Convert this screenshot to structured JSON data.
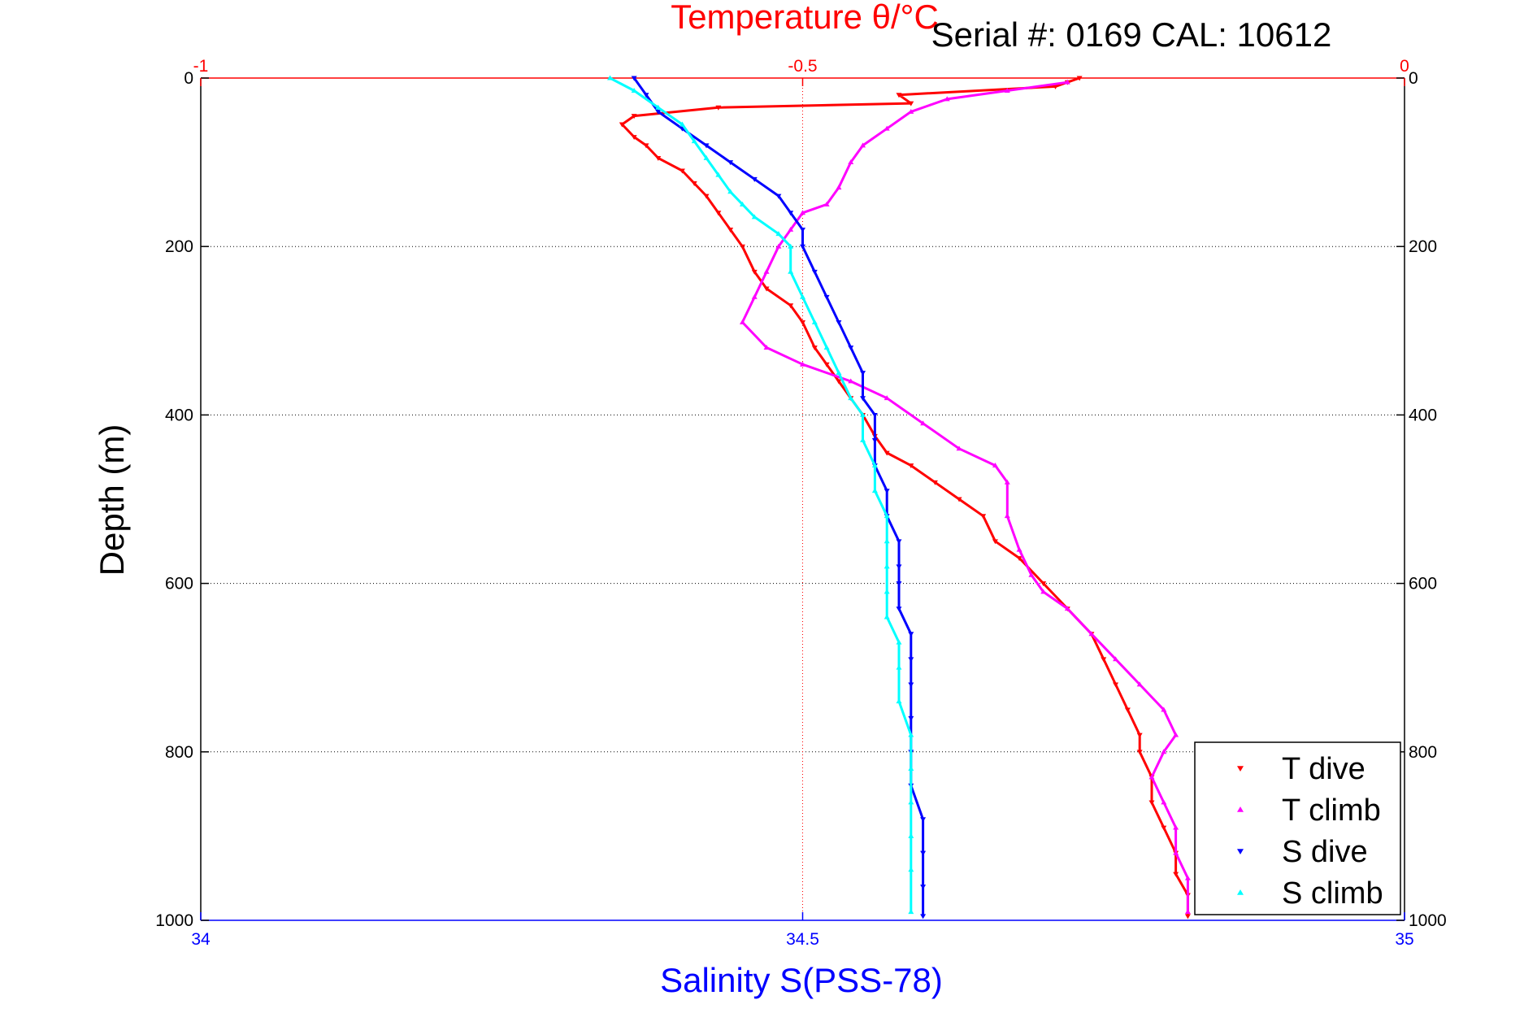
{
  "chart_data": {
    "type": "scatter",
    "title": "Temperature θ/°C",
    "annotation": "Serial #: 0169 CAL: 10612",
    "ylabel": "Depth (m)",
    "xlabel": "Salinity S(PSS-78)",
    "top_axis_label": "Temperature θ/°C",
    "ylim": [
      0,
      1000
    ],
    "y_reversed": true,
    "y_ticks": [
      0,
      200,
      400,
      600,
      800,
      1000
    ],
    "y_tick_labels": [
      "0",
      "200",
      "400",
      "600",
      "800",
      "1000"
    ],
    "salinity_xlim": [
      34,
      35
    ],
    "salinity_ticks": [
      34,
      34.5,
      35
    ],
    "salinity_tick_labels": [
      "34",
      "34.5",
      "35"
    ],
    "temperature_xlim": [
      -1,
      0
    ],
    "temperature_ticks": [
      -1,
      -0.5,
      0
    ],
    "temperature_tick_labels": [
      "-1",
      "-0.5",
      "0"
    ],
    "grid": "dotted",
    "legend_placement": "bottom-right",
    "series": [
      {
        "name": "T dive",
        "axis": "temperature",
        "color": "#ff0000",
        "marker": "triangle-down",
        "points": [
          [
            -0.27,
            0
          ],
          [
            -0.28,
            5
          ],
          [
            -0.29,
            10
          ],
          [
            -0.42,
            20
          ],
          [
            -0.41,
            30
          ],
          [
            -0.57,
            35
          ],
          [
            -0.64,
            45
          ],
          [
            -0.65,
            55
          ],
          [
            -0.64,
            70
          ],
          [
            -0.63,
            80
          ],
          [
            -0.62,
            95
          ],
          [
            -0.6,
            110
          ],
          [
            -0.59,
            125
          ],
          [
            -0.58,
            140
          ],
          [
            -0.57,
            160
          ],
          [
            -0.56,
            180
          ],
          [
            -0.55,
            200
          ],
          [
            -0.54,
            230
          ],
          [
            -0.53,
            250
          ],
          [
            -0.51,
            270
          ],
          [
            -0.5,
            290
          ],
          [
            -0.49,
            320
          ],
          [
            -0.48,
            340
          ],
          [
            -0.47,
            360
          ],
          [
            -0.46,
            380
          ],
          [
            -0.45,
            400
          ],
          [
            -0.44,
            425
          ],
          [
            -0.43,
            445
          ],
          [
            -0.41,
            460
          ],
          [
            -0.39,
            480
          ],
          [
            -0.37,
            500
          ],
          [
            -0.35,
            520
          ],
          [
            -0.34,
            550
          ],
          [
            -0.32,
            570
          ],
          [
            -0.3,
            600
          ],
          [
            -0.28,
            630
          ],
          [
            -0.26,
            660
          ],
          [
            -0.25,
            690
          ],
          [
            -0.24,
            720
          ],
          [
            -0.23,
            750
          ],
          [
            -0.22,
            780
          ],
          [
            -0.22,
            800
          ],
          [
            -0.21,
            830
          ],
          [
            -0.21,
            860
          ],
          [
            -0.2,
            890
          ],
          [
            -0.19,
            920
          ],
          [
            -0.19,
            945
          ],
          [
            -0.18,
            970
          ],
          [
            -0.18,
            995
          ]
        ]
      },
      {
        "name": "T climb",
        "axis": "temperature",
        "color": "#ff00ff",
        "marker": "triangle-up",
        "points": [
          [
            -0.28,
            5
          ],
          [
            -0.33,
            15
          ],
          [
            -0.38,
            25
          ],
          [
            -0.41,
            40
          ],
          [
            -0.43,
            60
          ],
          [
            -0.45,
            80
          ],
          [
            -0.46,
            100
          ],
          [
            -0.47,
            130
          ],
          [
            -0.48,
            150
          ],
          [
            -0.5,
            160
          ],
          [
            -0.51,
            180
          ],
          [
            -0.52,
            200
          ],
          [
            -0.53,
            230
          ],
          [
            -0.54,
            260
          ],
          [
            -0.55,
            290
          ],
          [
            -0.53,
            320
          ],
          [
            -0.5,
            340
          ],
          [
            -0.46,
            360
          ],
          [
            -0.43,
            380
          ],
          [
            -0.4,
            410
          ],
          [
            -0.37,
            440
          ],
          [
            -0.34,
            460
          ],
          [
            -0.33,
            480
          ],
          [
            -0.33,
            520
          ],
          [
            -0.32,
            560
          ],
          [
            -0.31,
            590
          ],
          [
            -0.3,
            610
          ],
          [
            -0.28,
            630
          ],
          [
            -0.26,
            660
          ],
          [
            -0.24,
            690
          ],
          [
            -0.22,
            720
          ],
          [
            -0.2,
            750
          ],
          [
            -0.19,
            780
          ],
          [
            -0.2,
            800
          ],
          [
            -0.21,
            830
          ],
          [
            -0.2,
            860
          ],
          [
            -0.19,
            890
          ],
          [
            -0.19,
            920
          ],
          [
            -0.18,
            950
          ],
          [
            -0.18,
            990
          ]
        ]
      },
      {
        "name": "S dive",
        "axis": "salinity",
        "color": "#0000ff",
        "marker": "triangle-down",
        "points": [
          [
            34.36,
            0
          ],
          [
            34.37,
            20
          ],
          [
            34.38,
            40
          ],
          [
            34.4,
            60
          ],
          [
            34.42,
            80
          ],
          [
            34.44,
            100
          ],
          [
            34.46,
            120
          ],
          [
            34.48,
            140
          ],
          [
            34.49,
            160
          ],
          [
            34.5,
            180
          ],
          [
            34.5,
            200
          ],
          [
            34.51,
            230
          ],
          [
            34.52,
            260
          ],
          [
            34.53,
            290
          ],
          [
            34.54,
            320
          ],
          [
            34.55,
            350
          ],
          [
            34.55,
            380
          ],
          [
            34.56,
            400
          ],
          [
            34.56,
            430
          ],
          [
            34.56,
            460
          ],
          [
            34.57,
            490
          ],
          [
            34.57,
            520
          ],
          [
            34.58,
            550
          ],
          [
            34.58,
            580
          ],
          [
            34.58,
            600
          ],
          [
            34.58,
            630
          ],
          [
            34.59,
            660
          ],
          [
            34.59,
            690
          ],
          [
            34.59,
            720
          ],
          [
            34.59,
            760
          ],
          [
            34.59,
            800
          ],
          [
            34.59,
            840
          ],
          [
            34.6,
            880
          ],
          [
            34.6,
            920
          ],
          [
            34.6,
            960
          ],
          [
            34.6,
            995
          ]
        ]
      },
      {
        "name": "S climb",
        "axis": "salinity",
        "color": "#00ffff",
        "marker": "triangle-up",
        "points": [
          [
            34.34,
            0
          ],
          [
            34.36,
            15
          ],
          [
            34.38,
            35
          ],
          [
            34.4,
            55
          ],
          [
            34.41,
            75
          ],
          [
            34.42,
            95
          ],
          [
            34.43,
            115
          ],
          [
            34.44,
            135
          ],
          [
            34.45,
            150
          ],
          [
            34.46,
            165
          ],
          [
            34.48,
            185
          ],
          [
            34.49,
            200
          ],
          [
            34.49,
            230
          ],
          [
            34.5,
            260
          ],
          [
            34.51,
            290
          ],
          [
            34.52,
            320
          ],
          [
            34.53,
            350
          ],
          [
            34.54,
            380
          ],
          [
            34.55,
            400
          ],
          [
            34.55,
            430
          ],
          [
            34.56,
            460
          ],
          [
            34.56,
            490
          ],
          [
            34.57,
            520
          ],
          [
            34.57,
            550
          ],
          [
            34.57,
            580
          ],
          [
            34.57,
            610
          ],
          [
            34.57,
            640
          ],
          [
            34.58,
            670
          ],
          [
            34.58,
            700
          ],
          [
            34.58,
            740
          ],
          [
            34.59,
            780
          ],
          [
            34.59,
            820
          ],
          [
            34.59,
            860
          ],
          [
            34.59,
            900
          ],
          [
            34.59,
            940
          ],
          [
            34.59,
            990
          ]
        ]
      }
    ]
  }
}
